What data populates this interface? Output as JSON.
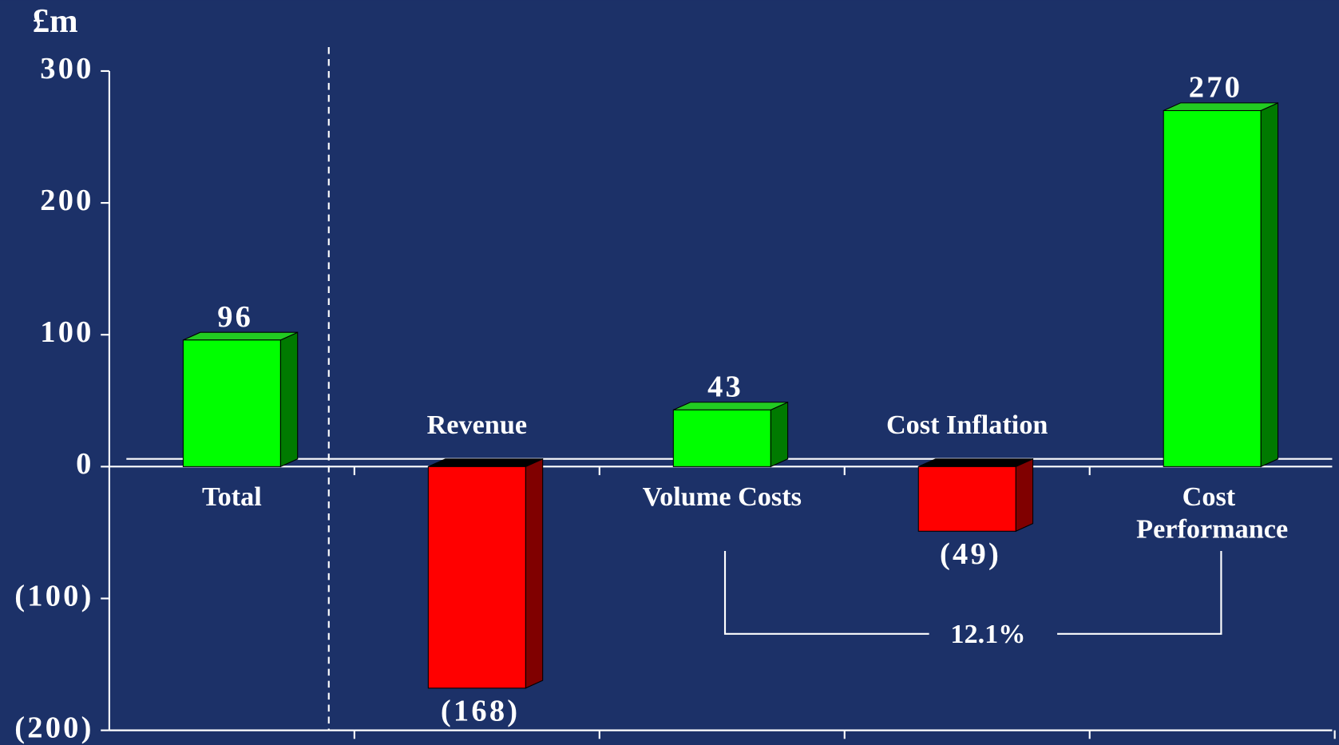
{
  "chart_data": {
    "type": "bar3d",
    "y_axis_label": "£m",
    "categories": [
      "Total",
      "Revenue",
      "Volume Costs",
      "Cost Inflation",
      "Cost Performance"
    ],
    "values": [
      96,
      -168,
      43,
      -49,
      270
    ],
    "value_labels": [
      "96",
      "(168)",
      "43",
      "(49)",
      "270"
    ],
    "ylim": [
      -200,
      300
    ],
    "yticks": [
      300,
      200,
      100,
      0,
      {
        "value": -100,
        "label": "(100)"
      },
      {
        "value": -200,
        "label": "(200)"
      }
    ],
    "positive_color": "#00ff00",
    "negative_color": "#ff0000",
    "annotation": "12.1%"
  }
}
